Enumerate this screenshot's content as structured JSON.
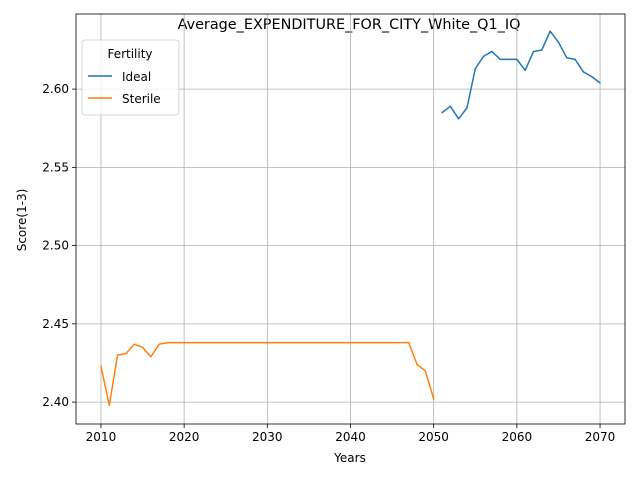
{
  "chart_data": {
    "type": "line",
    "title": "Average_EXPENDITURE_FOR_CITY_White_Q1_IQ",
    "xlabel": "Years",
    "ylabel": "Score(1-3)",
    "xlim": [
      2007,
      2073
    ],
    "ylim": [
      2.386,
      2.648
    ],
    "x_ticks": [
      2010,
      2020,
      2030,
      2040,
      2050,
      2060,
      2070
    ],
    "y_ticks": [
      2.4,
      2.45,
      2.5,
      2.55,
      2.6
    ],
    "x_tick_labels": [
      "2010",
      "2020",
      "2030",
      "2040",
      "2050",
      "2060",
      "2070"
    ],
    "y_tick_labels": [
      "2.40",
      "2.45",
      "2.50",
      "2.55",
      "2.60"
    ],
    "grid": true,
    "legend": {
      "title": "Fertility",
      "position": "top-left"
    },
    "series": [
      {
        "name": "Ideal",
        "color": "#1f77b4",
        "x": [
          2051,
          2052,
          2053,
          2054,
          2055,
          2056,
          2057,
          2058,
          2059,
          2060,
          2061,
          2062,
          2063,
          2064,
          2065,
          2066,
          2067,
          2068,
          2069,
          2070
        ],
        "y": [
          2.585,
          2.589,
          2.581,
          2.588,
          2.613,
          2.621,
          2.624,
          2.619,
          2.619,
          2.619,
          2.612,
          2.624,
          2.625,
          2.637,
          2.63,
          2.62,
          2.619,
          2.611,
          2.608,
          2.604
        ]
      },
      {
        "name": "Sterile",
        "color": "#ff7f0e",
        "x": [
          2010,
          2011,
          2012,
          2013,
          2014,
          2015,
          2016,
          2017,
          2018,
          2019,
          2020,
          2021,
          2022,
          2023,
          2024,
          2025,
          2026,
          2027,
          2028,
          2029,
          2030,
          2031,
          2032,
          2033,
          2034,
          2035,
          2036,
          2037,
          2038,
          2039,
          2040,
          2041,
          2042,
          2043,
          2044,
          2045,
          2046,
          2047,
          2048,
          2049,
          2050
        ],
        "y": [
          2.423,
          2.398,
          2.43,
          2.431,
          2.437,
          2.435,
          2.429,
          2.437,
          2.438,
          2.438,
          2.438,
          2.438,
          2.438,
          2.438,
          2.438,
          2.438,
          2.438,
          2.438,
          2.438,
          2.438,
          2.438,
          2.438,
          2.438,
          2.438,
          2.438,
          2.438,
          2.438,
          2.438,
          2.438,
          2.438,
          2.438,
          2.438,
          2.438,
          2.438,
          2.438,
          2.438,
          2.438,
          2.438,
          2.424,
          2.42,
          2.402
        ]
      }
    ]
  }
}
